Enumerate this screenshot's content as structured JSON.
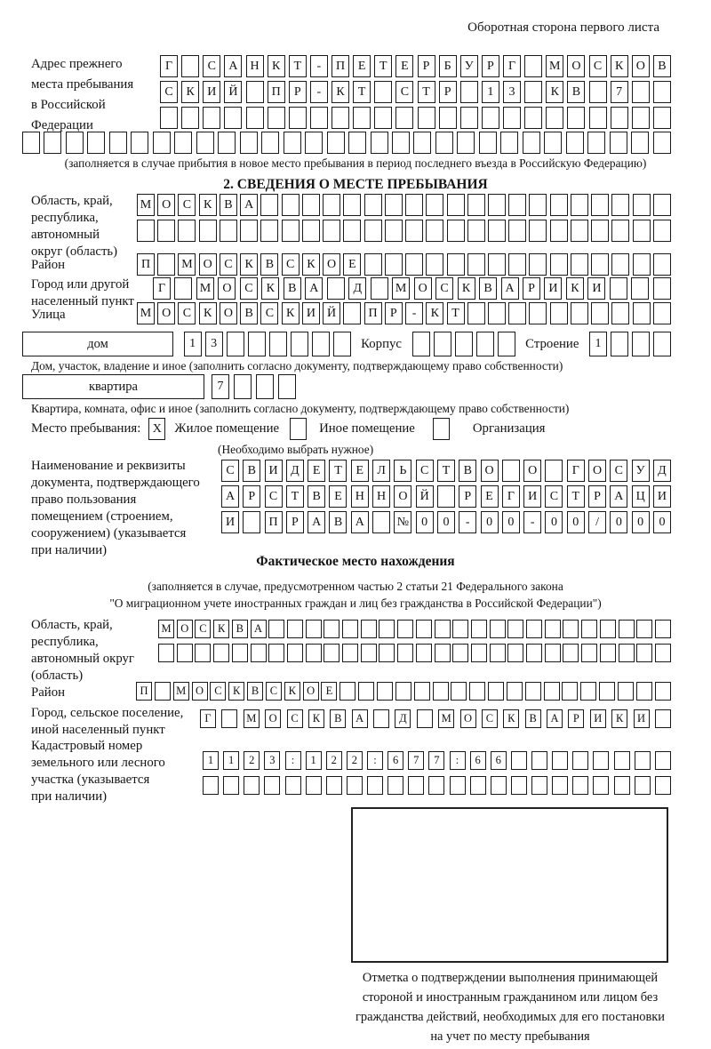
{
  "page": {
    "header_note": "Оборотная сторона первого листа"
  },
  "prev_address": {
    "label_lines": [
      "Адрес прежнего",
      "места пребывания",
      "в Российской",
      "Федерации"
    ],
    "row1": {
      "text": "Г САНКТ-ПЕТЕРБУРГ МОСКОВ",
      "len": 24
    },
    "row2": {
      "text": "СКИЙ ПР-КТ СТР 13 КВ 7",
      "len": 24
    },
    "row3": {
      "text": "",
      "len": 24
    },
    "row4": {
      "text": "",
      "len": 30
    },
    "note": "(заполняется в случае прибытия в новое место пребывания в период последнего въезда в Российскую Федерацию)"
  },
  "section2": {
    "title": "2. СВЕДЕНИЯ О МЕСТЕ ПРЕБЫВАНИЯ",
    "region_label_lines": [
      "Область, край,",
      "республика,",
      "автономный",
      "округ (область)"
    ],
    "region_row1": {
      "text": "МОСКВА",
      "len": 26
    },
    "region_row2": {
      "text": "",
      "len": 26
    },
    "district_label": "Район",
    "district_row": {
      "text": "П МОСКВСКОЕ",
      "len": 26
    },
    "city_label_lines": [
      "Город или другой",
      "населенный пункт"
    ],
    "city_row": {
      "text": "Г МОСКВА Д МОСКВАРИКИ",
      "len": 24
    },
    "street_label": "Улица",
    "street_row": {
      "text": "МОСКОВСКИЙ ПР-КТ",
      "len": 26
    },
    "house": {
      "label": "дом",
      "cells": {
        "text": "13",
        "len": 8
      },
      "korpus_label": "Корпус",
      "korpus_cells": {
        "text": "",
        "len": 5
      },
      "stroenie_label": "Строение",
      "stroenie_cells": {
        "text": "1",
        "len": 4
      },
      "note": "Дом, участок, владение и иное (заполнить согласно документу, подтверждающему право собственности)"
    },
    "apartment": {
      "label": "квартира",
      "cells": {
        "text": "7",
        "len": 4
      },
      "note": "Квартира, комната, офис и иное (заполнить согласно документу, подтверждающему право собственности)"
    },
    "stay_type": {
      "label": "Место пребывания:",
      "options": [
        {
          "mark": "X",
          "label": "Жилое помещение"
        },
        {
          "mark": "",
          "label": "Иное помещение"
        },
        {
          "mark": "",
          "label": "Организация"
        }
      ],
      "hint": "(Необходимо выбрать нужное)"
    },
    "document_label_lines": [
      "Наименование и реквизиты",
      "документа, подтверждающего",
      "право пользования",
      "помещением (строением,",
      "сооружением) (указывается",
      "при наличии)"
    ],
    "document_row1": {
      "text": "СВИДЕТЕЛЬСТВО О ГОСУД",
      "len": 21
    },
    "document_row2": {
      "text": "АРСТВЕННОЙ РЕГИСТРАЦИ",
      "len": 21
    },
    "document_row3": {
      "text": "И ПРАВА №00-00-00/000",
      "len": 21
    }
  },
  "actual_location": {
    "title": "Фактическое место нахождения",
    "note_line1": "(заполняется в случае, предусмотренном частью 2 статьи 21 Федерального закона",
    "note_line2": "\"О миграционном учете иностранных граждан и лиц без гражданства в Российской Федерации\")",
    "region_label_lines": [
      "Область, край,",
      "республика,",
      "автономный округ",
      "(область)"
    ],
    "region_row1": {
      "text": "МОСКВА",
      "len": 28
    },
    "region_row2": {
      "text": "",
      "len": 28
    },
    "district_label": "Район",
    "district_row": {
      "text": "П МОСКВСКОЕ",
      "len": 29
    },
    "city_label_lines": [
      "Город, сельское поселение,",
      "иной населенный пункт"
    ],
    "city_row": {
      "text": "Г МОСКВА Д МОСКВАРИКИ",
      "len": 22
    },
    "cadastral_label_lines": [
      "Кадастровый номер",
      "земельного или лесного",
      "участка (указывается",
      "при наличии)"
    ],
    "cadastral_row1": {
      "text": "1123:122:677:66",
      "len": 23
    },
    "cadastral_row2": {
      "text": "",
      "len": 23
    },
    "stamp_caption_lines": [
      "Отметка о подтверждении выполнения принимающей",
      "стороной и иностранным гражданином или лицом без",
      "гражданства действий, необходимых для его постановки",
      "на учет по месту пребывания"
    ]
  }
}
